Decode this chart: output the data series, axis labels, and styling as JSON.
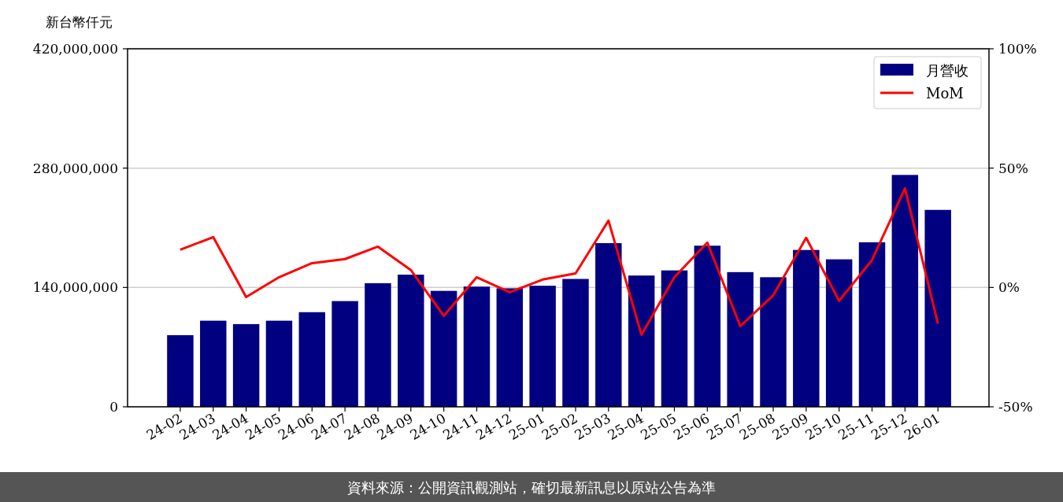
{
  "chart_data": {
    "type": "bar",
    "ylabel": "新台幣仟元",
    "categories": [
      "24-02",
      "24-03",
      "24-04",
      "24-05",
      "24-06",
      "24-07",
      "24-08",
      "24-09",
      "24-10",
      "24-11",
      "24-12",
      "25-01",
      "25-02",
      "25-03",
      "25-04",
      "25-05",
      "25-06",
      "25-07",
      "25-08",
      "25-09",
      "25-10",
      "25-11",
      "25-12",
      "26-01"
    ],
    "series": [
      {
        "name": "月營收",
        "color": "#000080",
        "values": [
          84000000,
          101000000,
          97000000,
          101000000,
          111000000,
          124000000,
          145000000,
          155000000,
          136000000,
          141000000,
          139000000,
          142000000,
          150000000,
          192000000,
          154000000,
          160000000,
          189000000,
          158000000,
          152000000,
          184000000,
          173000000,
          193000000,
          272000000,
          231000000
        ]
      },
      {
        "name": "MoM",
        "type": "line",
        "axis": "y2",
        "color": "#ff0000",
        "values": [
          15.8,
          21.1,
          -4,
          4.3,
          10.2,
          11.9,
          17.1,
          7.3,
          -11.9,
          4.3,
          -2,
          3.3,
          5.9,
          28,
          -19.8,
          4.3,
          18.8,
          -16.2,
          -3.3,
          20.8,
          -5.6,
          11.5,
          41.5,
          -15.2
        ]
      }
    ],
    "ylim": [
      0,
      420000000
    ],
    "yticks": [
      {
        "value": 0,
        "label": "0"
      },
      {
        "value": 140000000,
        "label": "140,000,000"
      },
      {
        "value": 280000000,
        "label": "280,000,000"
      },
      {
        "value": 420000000,
        "label": "420,000,000"
      }
    ],
    "y2lim": [
      -50,
      100
    ],
    "y2ticks": [
      {
        "value": -50,
        "label": "-50%"
      },
      {
        "value": 0,
        "label": "0%"
      },
      {
        "value": 50,
        "label": "50%"
      },
      {
        "value": 100,
        "label": "100%"
      }
    ],
    "grid": "y",
    "legend": "top right",
    "annotations": [
      "資料來源：公開資訊觀測站，確切最新訊息以原站公告為準"
    ]
  }
}
